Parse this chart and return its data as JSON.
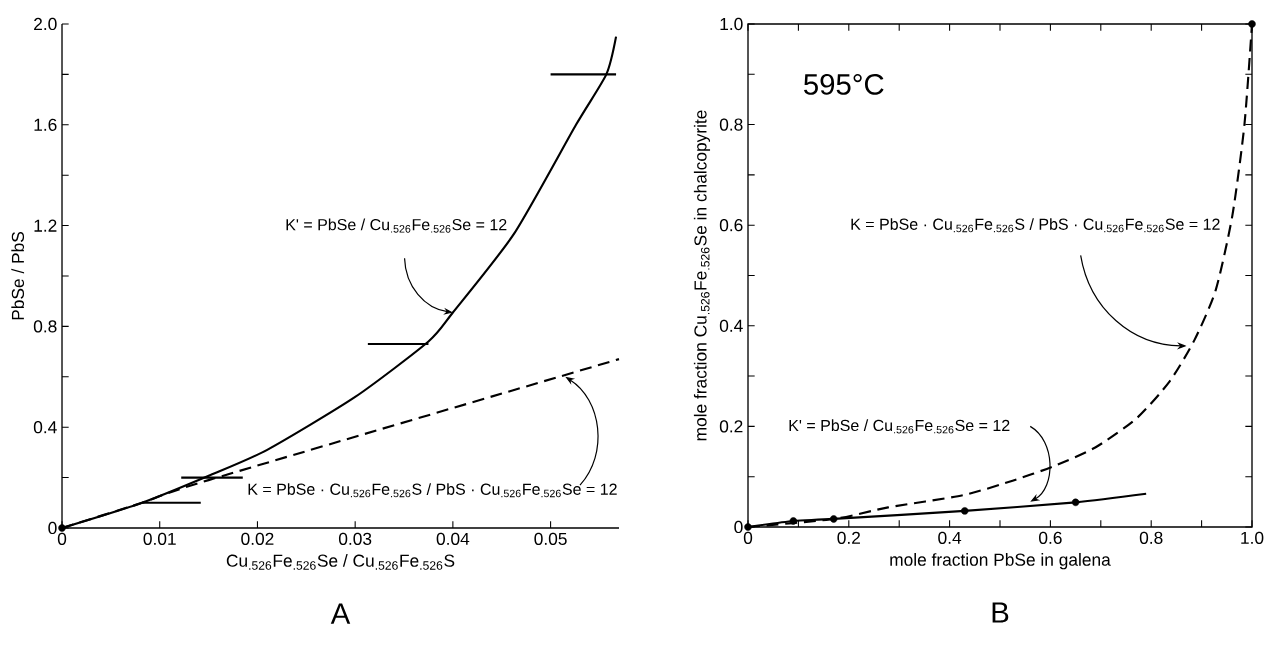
{
  "chart_data": [
    {
      "type": "line",
      "xlabel": "Cu$_{.526}$Fe$_{.526}$Se / Cu$_{.526}$Fe$_{.526}$S",
      "ylabel": "PbSe / PbS",
      "xlim": [
        0,
        0.057
      ],
      "ylim": [
        0,
        2.0
      ],
      "xticks": [
        0,
        0.01,
        0.02,
        0.03,
        0.04,
        0.05
      ],
      "yticks": [
        0,
        {
          "value": 0.2,
          "label": null
        },
        0.4,
        {
          "value": 0.6,
          "label": null
        },
        0.8,
        {
          "value": 1.0,
          "label": null
        },
        1.2,
        {
          "value": 1.4,
          "label": null
        },
        1.6,
        {
          "value": 1.8,
          "label": null
        },
        {
          "value": 2.0,
          "label": "2.0"
        }
      ],
      "series": [
        {
          "line_style": "solid",
          "color": "#000000",
          "x": [
            0,
            0.0082,
            0.0152,
            0.021,
            0.03,
            0.0375,
            0.04,
            0.0463,
            0.0526,
            0.0557,
            0.0567
          ],
          "values": [
            0,
            0.1,
            0.21,
            0.31,
            0.52,
            0.74,
            0.855,
            1.17,
            1.6,
            1.8,
            1.95
          ]
        },
        {
          "line_style": "dashed",
          "color": "#000000",
          "x": [
            0,
            0.0082,
            0.015,
            0.057
          ],
          "values": [
            0,
            0.1,
            0.19,
            0.67
          ]
        },
        {
          "line_style": "solid",
          "color": "#000000",
          "x": [
            0.0082,
            0.0142
          ],
          "values": [
            0.1,
            0.1
          ]
        },
        {
          "line_style": "solid",
          "color": "#000000",
          "x": [
            0.0122,
            0.0185
          ],
          "values": [
            0.2,
            0.2
          ]
        },
        {
          "line_style": "solid",
          "color": "#000000",
          "x": [
            0.0313,
            0.0375
          ],
          "values": [
            0.73,
            0.73
          ]
        },
        {
          "line_style": "solid",
          "color": "#000000",
          "x": [
            0.05,
            0.0567
          ],
          "values": [
            1.8,
            1.8
          ]
        },
        {
          "type": "scatter",
          "color": "#000000",
          "x": [
            0
          ],
          "values": [
            0
          ]
        }
      ],
      "annotations": [
        "K' = PbSe / Cu$_{.526}$Fe$_{.526}$Se = 12",
        "K = PbSe · Cu$_{.526}$Fe$_{.526}$S / PbS · Cu$_{.526}$Fe$_{.526}$Se = 12",
        "A"
      ]
    },
    {
      "type": "line",
      "xlabel": "mole fraction PbSe in galena",
      "ylabel": "mole fraction Cu$_{.526}$Fe$_{.526}$Se in chalcopyrite",
      "xlim": [
        0,
        1.0
      ],
      "ylim": [
        0,
        1.0
      ],
      "xticks": [
        0,
        {
          "value": 0.1,
          "label": null
        },
        0.2,
        {
          "value": 0.3,
          "label": null
        },
        0.4,
        {
          "value": 0.5,
          "label": null
        },
        0.6,
        {
          "value": 0.7,
          "label": null
        },
        0.8,
        {
          "value": 0.9,
          "label": null
        },
        {
          "value": 1.0,
          "label": "1.0"
        }
      ],
      "yticks": [
        0,
        {
          "value": 0.1,
          "label": null
        },
        0.2,
        {
          "value": 0.3,
          "label": null
        },
        0.4,
        {
          "value": 0.5,
          "label": null
        },
        0.6,
        {
          "value": 0.7,
          "label": null
        },
        0.8,
        {
          "value": 0.9,
          "label": null
        },
        {
          "value": 1.0,
          "label": "1.0"
        }
      ],
      "series": [
        {
          "line_style": "dashed",
          "color": "#000000",
          "x": [
            0,
            0.171,
            0.278,
            0.426,
            0.525,
            0.607,
            0.689,
            0.771,
            0.837,
            0.886,
            0.928,
            0.961,
            0.985,
            1.0
          ],
          "values": [
            0,
            0.016,
            0.039,
            0.063,
            0.092,
            0.121,
            0.158,
            0.216,
            0.29,
            0.372,
            0.471,
            0.619,
            0.8,
            1.0
          ]
        },
        {
          "line_style": "solid",
          "color": "#000000",
          "x": [
            0,
            0.09,
            0.17,
            0.43,
            0.65,
            0.79
          ],
          "values": [
            0,
            0.012,
            0.016,
            0.032,
            0.049,
            0.066
          ]
        },
        {
          "type": "scatter",
          "color": "#000000",
          "x": [
            0,
            0.09,
            0.17,
            0.43,
            0.65,
            1.0
          ],
          "values": [
            0,
            0.012,
            0.016,
            0.032,
            0.049,
            1.0
          ]
        }
      ],
      "annotations": [
        "595°C",
        "K = PbSe · Cu$_{.526}$Fe$_{.526}$S / PbS · Cu$_{.526}$Fe$_{.526}$Se = 12",
        "K' = PbSe / Cu$_{.526}$Fe$_{.526}$Se = 12",
        "B"
      ]
    }
  ]
}
